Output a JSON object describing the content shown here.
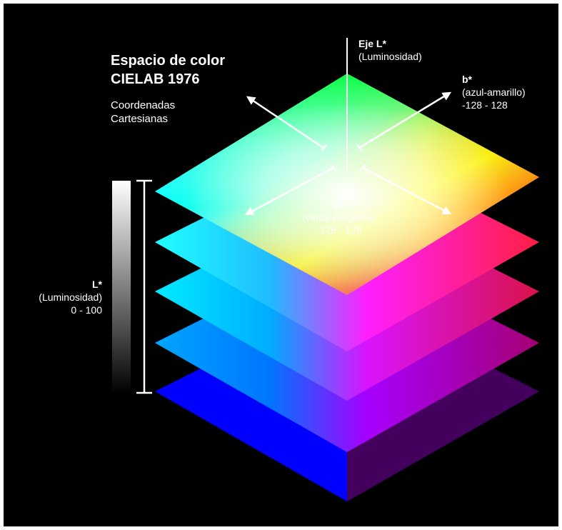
{
  "title": {
    "line1": "Espacio de color",
    "line2": "CIELAB 1976"
  },
  "subtitle": {
    "line1": "Coordenadas",
    "line2": "Cartesianas"
  },
  "l_axis": {
    "line1": "Eje L*",
    "line2": "(Luminosidad)"
  },
  "b_axis": {
    "line1": "b*",
    "line2": "(azul-amarillo)",
    "line3": "-128 - 128"
  },
  "a_axis": {
    "line1": "a*",
    "line2": "(verde-magenta)",
    "line3": "-128 - 128"
  },
  "l_scale": {
    "line1": "L*",
    "line2": "(Luminosidad)",
    "line3": "0 - 100"
  },
  "colors": {
    "background": "#000000",
    "frame": "#ffffff",
    "labels": "#ffffff",
    "green": "#00ff3a",
    "yellow": "#ffff00",
    "red": "#ff1e3c",
    "cyan": "#00ffff",
    "blue": "#0000ff",
    "magenta": "#ff00ff"
  }
}
